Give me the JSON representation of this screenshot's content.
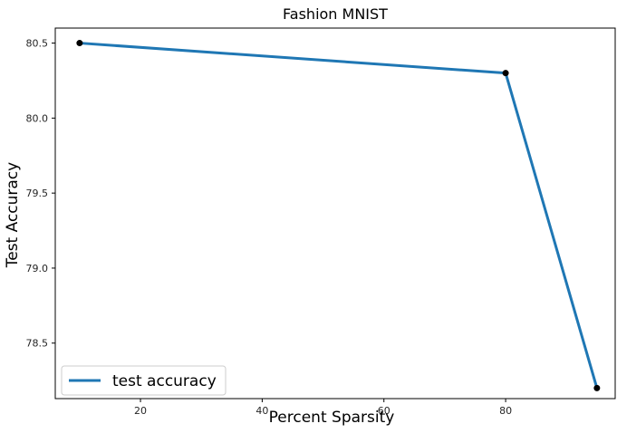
{
  "chart_data": {
    "type": "line",
    "title": "Fashion MNIST",
    "xlabel": "Percent Sparsity",
    "ylabel": "Test Accuracy",
    "xlim": [
      6,
      98
    ],
    "ylim": [
      78.13,
      80.6
    ],
    "xticks": [
      20,
      40,
      60,
      80
    ],
    "yticks": [
      78.5,
      79.0,
      79.5,
      80.0,
      80.5
    ],
    "grid": false,
    "legend": {
      "placement": "lower-left",
      "entries": [
        "test accuracy"
      ]
    },
    "series": [
      {
        "name": "test accuracy",
        "color": "#1f77b4",
        "marker_color": "#000000",
        "x": [
          10,
          80,
          95
        ],
        "y": [
          80.5,
          80.3,
          78.2
        ]
      }
    ]
  }
}
